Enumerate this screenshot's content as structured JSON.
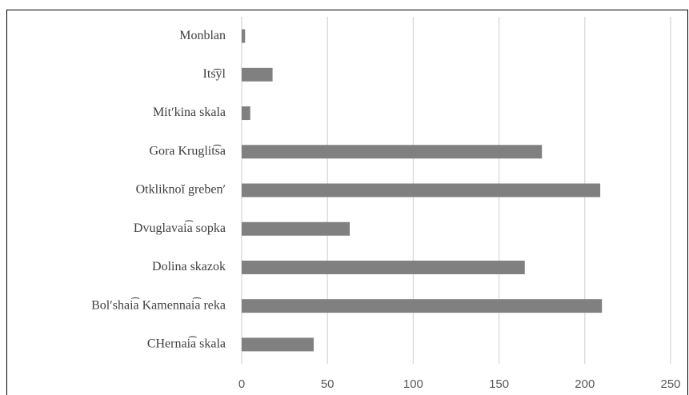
{
  "chart_data": {
    "type": "barh",
    "categories": [
      "Monblan",
      "Its͡yl",
      "Mitʹkina skala",
      "Gora Kruglit͡sa",
      "Otkliknoĭ grebenʹ",
      "Dvuglavai͡a sopka",
      "Dolina skazok",
      "Bolʹshai͡a Kamennai͡a  reka",
      "CHernai͡a skala"
    ],
    "values": [
      2,
      18,
      5,
      175,
      209,
      63,
      165,
      210,
      42
    ],
    "color": "#808080",
    "xlim": [
      0,
      250
    ],
    "xticks": [
      0,
      50,
      100,
      150,
      200,
      250
    ],
    "grid": true
  }
}
